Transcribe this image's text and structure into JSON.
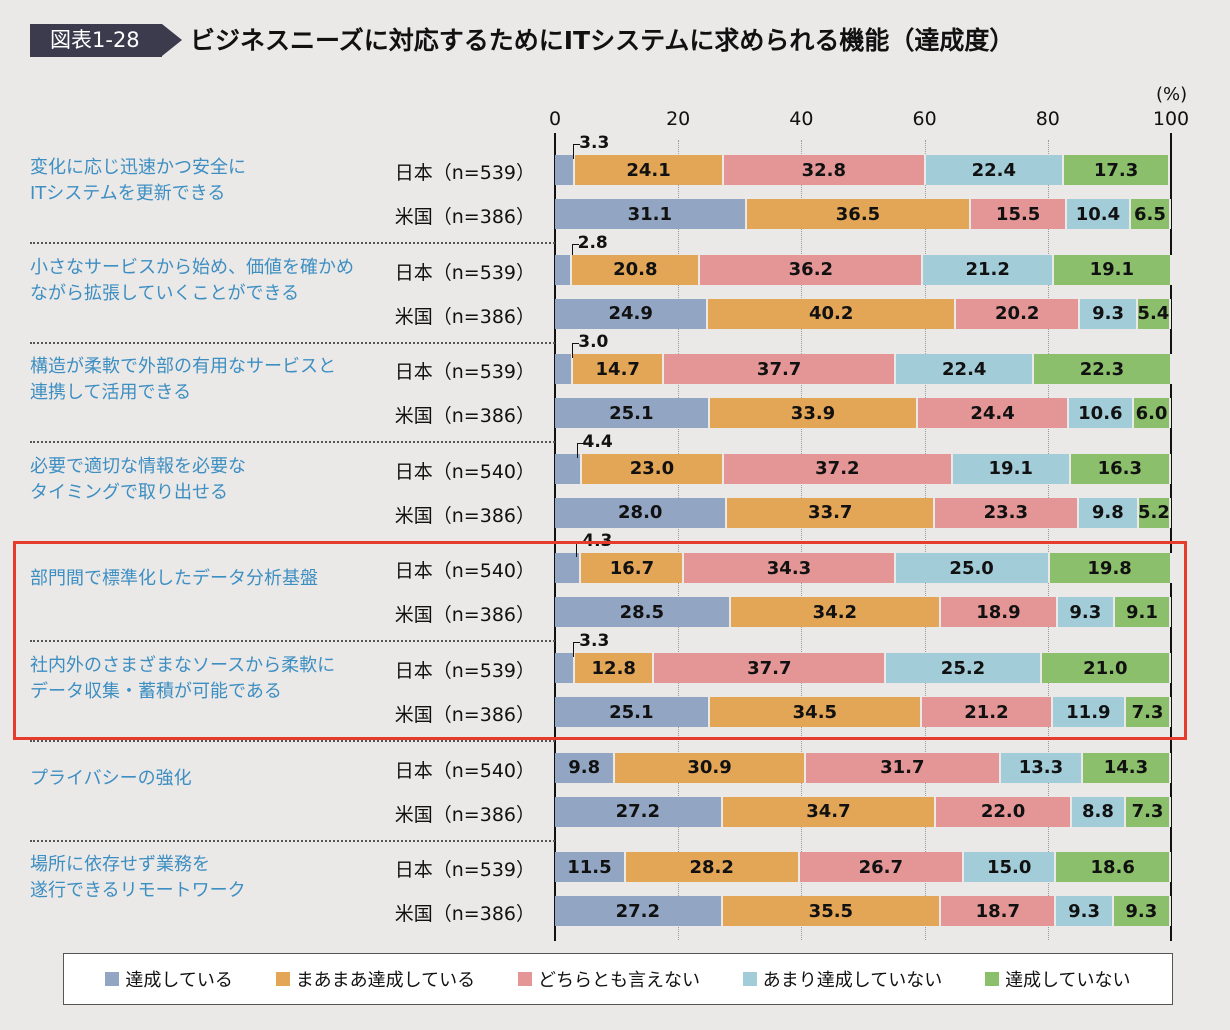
{
  "header": {
    "badge": "図表1-28",
    "title": "ビジネスニーズに対応するためにITシステムに求められる機能（達成度）"
  },
  "chart_data": {
    "type": "bar",
    "orientation": "horizontal",
    "stacked": true,
    "title": "ビジネスニーズに対応するためにITシステムに求められる機能（達成度）",
    "unit": "(%)",
    "xlim": [
      0,
      100
    ],
    "xticks": [
      "0",
      "20",
      "40",
      "60",
      "80",
      "100"
    ],
    "legend_position": "bottom",
    "series_names": [
      "達成している",
      "まあまあ達成している",
      "どちらとも言えない",
      "あまり達成していない",
      "達成していない"
    ],
    "colors": [
      "#92a5c2",
      "#e3a556",
      "#e49596",
      "#a2ccd8",
      "#8bbf6b"
    ],
    "highlight_color": "#e63c2b",
    "highlighted_groups": [
      4,
      5
    ],
    "groups": [
      {
        "label": [
          "変化に応じ迅速かつ安全に",
          "ITシステムを更新できる"
        ],
        "rows": [
          {
            "label": "日本（n=539）",
            "values": [
              3.3,
              24.1,
              32.8,
              22.4,
              17.3
            ]
          },
          {
            "label": "米国（n=386）",
            "values": [
              31.1,
              36.5,
              15.5,
              10.4,
              6.5
            ]
          }
        ]
      },
      {
        "label": [
          "小さなサービスから始め、価値を確かめ",
          "ながら拡張していくことができる"
        ],
        "rows": [
          {
            "label": "日本（n=539）",
            "values": [
              2.8,
              20.8,
              36.2,
              21.2,
              19.1
            ]
          },
          {
            "label": "米国（n=386）",
            "values": [
              24.9,
              40.2,
              20.2,
              9.3,
              5.4
            ]
          }
        ]
      },
      {
        "label": [
          "構造が柔軟で外部の有用なサービスと",
          "連携して活用できる"
        ],
        "rows": [
          {
            "label": "日本（n=539）",
            "values": [
              3.0,
              14.7,
              37.7,
              22.4,
              22.3
            ]
          },
          {
            "label": "米国（n=386）",
            "values": [
              25.1,
              33.9,
              24.4,
              10.6,
              6.0
            ]
          }
        ]
      },
      {
        "label": [
          "必要で適切な情報を必要な",
          "タイミングで取り出せる"
        ],
        "rows": [
          {
            "label": "日本（n=540）",
            "values": [
              4.4,
              23.0,
              37.2,
              19.1,
              16.3
            ]
          },
          {
            "label": "米国（n=386）",
            "values": [
              28.0,
              33.7,
              23.3,
              9.8,
              5.2
            ]
          }
        ]
      },
      {
        "label": [
          "部門間で標準化したデータ分析基盤"
        ],
        "rows": [
          {
            "label": "日本（n=540）",
            "values": [
              4.3,
              16.7,
              34.3,
              25.0,
              19.8
            ]
          },
          {
            "label": "米国（n=386）",
            "values": [
              28.5,
              34.2,
              18.9,
              9.3,
              9.1
            ]
          }
        ]
      },
      {
        "label": [
          "社内外のさまざまなソースから柔軟に",
          "データ収集・蓄積が可能である"
        ],
        "rows": [
          {
            "label": "日本（n=539）",
            "values": [
              3.3,
              12.8,
              37.7,
              25.2,
              21.0
            ]
          },
          {
            "label": "米国（n=386）",
            "values": [
              25.1,
              34.5,
              21.2,
              11.9,
              7.3
            ]
          }
        ]
      },
      {
        "label": [
          "プライバシーの強化"
        ],
        "rows": [
          {
            "label": "日本（n=540）",
            "values": [
              9.8,
              30.9,
              31.7,
              13.3,
              14.3
            ]
          },
          {
            "label": "米国（n=386）",
            "values": [
              27.2,
              34.7,
              22.0,
              8.8,
              7.3
            ]
          }
        ]
      },
      {
        "label": [
          "場所に依存せず業務を",
          "遂行できるリモートワーク"
        ],
        "rows": [
          {
            "label": "日本（n=539）",
            "values": [
              11.5,
              28.2,
              26.7,
              15.0,
              18.6
            ]
          },
          {
            "label": "米国（n=386）",
            "values": [
              27.2,
              35.5,
              18.7,
              9.3,
              9.3
            ]
          }
        ]
      }
    ]
  }
}
